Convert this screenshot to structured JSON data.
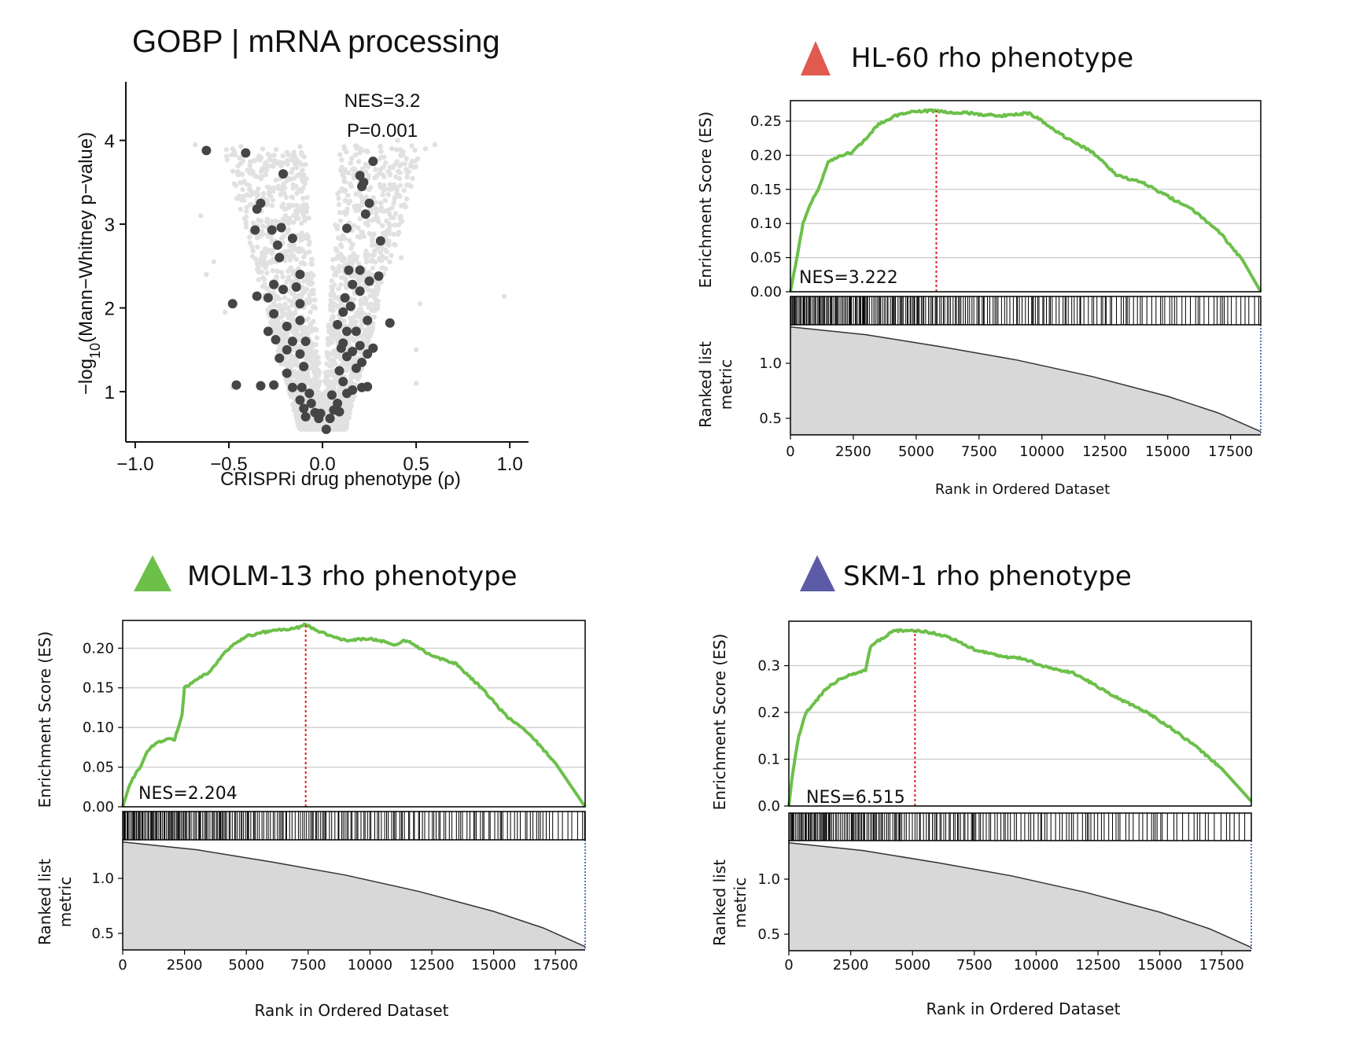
{
  "colors": {
    "es_line": "#6cc04a",
    "peak_line": "#e0201b",
    "ranked_fill": "#d8d8d8",
    "grid": "#c8c8c8",
    "volcano_bg": "#e1e1e1",
    "volcano_hit": "#454545",
    "marker_hl60": "#e05a4f",
    "marker_molm13": "#6cc04a",
    "marker_skm1": "#5b5ba8"
  },
  "volcano": {
    "title": "GOBP | mRNA processing",
    "nes_label": "NES=3.2",
    "p_label": "P=0.001"
  },
  "chart_data": [
    {
      "type": "scatter",
      "title": "GOBP | mRNA processing",
      "xlabel": "CRISPRi drug phenotype (ρ)",
      "ylabel": "−log10(Mann−Whitney p−value)",
      "xlim": [
        -1.05,
        1.1
      ],
      "ylim": [
        0.4,
        4.7
      ],
      "xticks": [
        "−1.0",
        "−0.5",
        "0.0",
        "0.5",
        "1.0"
      ],
      "xtick_values": [
        -1.0,
        -0.5,
        0.0,
        0.5,
        1.0
      ],
      "yticks": [
        "1",
        "2",
        "3",
        "4"
      ],
      "ytick_values": [
        1,
        2,
        3,
        4
      ],
      "annotations": [
        "NES=3.2",
        "P=0.001"
      ],
      "highlighted_points": [
        {
          "x": -0.62,
          "y": 3.88
        },
        {
          "x": -0.41,
          "y": 3.85
        },
        {
          "x": -0.21,
          "y": 3.6
        },
        {
          "x": -0.33,
          "y": 3.25
        },
        {
          "x": -0.35,
          "y": 3.18
        },
        {
          "x": -0.36,
          "y": 2.93
        },
        {
          "x": -0.27,
          "y": 2.93
        },
        {
          "x": -0.22,
          "y": 2.96
        },
        {
          "x": -0.24,
          "y": 2.75
        },
        {
          "x": -0.16,
          "y": 2.83
        },
        {
          "x": -0.23,
          "y": 2.6
        },
        {
          "x": -0.12,
          "y": 2.4
        },
        {
          "x": -0.26,
          "y": 2.28
        },
        {
          "x": -0.14,
          "y": 2.25
        },
        {
          "x": -0.21,
          "y": 2.22
        },
        {
          "x": -0.35,
          "y": 2.14
        },
        {
          "x": -0.29,
          "y": 2.12
        },
        {
          "x": -0.48,
          "y": 2.05
        },
        {
          "x": -0.12,
          "y": 2.05
        },
        {
          "x": -0.26,
          "y": 1.93
        },
        {
          "x": -0.12,
          "y": 1.85
        },
        {
          "x": -0.19,
          "y": 1.78
        },
        {
          "x": -0.29,
          "y": 1.72
        },
        {
          "x": -0.25,
          "y": 1.62
        },
        {
          "x": -0.16,
          "y": 1.6
        },
        {
          "x": -0.09,
          "y": 1.6
        },
        {
          "x": -0.19,
          "y": 1.5
        },
        {
          "x": -0.12,
          "y": 1.45
        },
        {
          "x": -0.23,
          "y": 1.4
        },
        {
          "x": -0.1,
          "y": 1.3
        },
        {
          "x": -0.19,
          "y": 1.22
        },
        {
          "x": -0.26,
          "y": 1.08
        },
        {
          "x": -0.46,
          "y": 1.08
        },
        {
          "x": -0.33,
          "y": 1.07
        },
        {
          "x": -0.16,
          "y": 1.05
        },
        {
          "x": -0.11,
          "y": 1.05
        },
        {
          "x": -0.07,
          "y": 0.98
        },
        {
          "x": -0.12,
          "y": 0.9
        },
        {
          "x": -0.06,
          "y": 0.86
        },
        {
          "x": -0.1,
          "y": 0.8
        },
        {
          "x": -0.04,
          "y": 0.75
        },
        {
          "x": -0.09,
          "y": 0.7
        },
        {
          "x": -0.02,
          "y": 0.68
        },
        {
          "x": 0.02,
          "y": 0.55
        },
        {
          "x": -0.01,
          "y": 0.74
        },
        {
          "x": 0.04,
          "y": 0.68
        },
        {
          "x": 0.06,
          "y": 0.78
        },
        {
          "x": 0.09,
          "y": 0.76
        },
        {
          "x": 0.08,
          "y": 0.86
        },
        {
          "x": 0.05,
          "y": 0.96
        },
        {
          "x": 0.13,
          "y": 0.98
        },
        {
          "x": 0.16,
          "y": 1.02
        },
        {
          "x": 0.21,
          "y": 1.05
        },
        {
          "x": 0.24,
          "y": 1.06
        },
        {
          "x": 0.11,
          "y": 1.12
        },
        {
          "x": 0.09,
          "y": 1.25
        },
        {
          "x": 0.18,
          "y": 1.28
        },
        {
          "x": 0.21,
          "y": 1.35
        },
        {
          "x": 0.13,
          "y": 1.42
        },
        {
          "x": 0.16,
          "y": 1.48
        },
        {
          "x": 0.1,
          "y": 1.52
        },
        {
          "x": 0.24,
          "y": 1.45
        },
        {
          "x": 0.11,
          "y": 1.58
        },
        {
          "x": 0.2,
          "y": 1.55
        },
        {
          "x": 0.27,
          "y": 1.52
        },
        {
          "x": 0.13,
          "y": 1.72
        },
        {
          "x": 0.18,
          "y": 1.72
        },
        {
          "x": 0.08,
          "y": 1.8
        },
        {
          "x": 0.24,
          "y": 1.85
        },
        {
          "x": 0.36,
          "y": 1.82
        },
        {
          "x": 0.11,
          "y": 1.95
        },
        {
          "x": 0.15,
          "y": 2.02
        },
        {
          "x": 0.12,
          "y": 2.12
        },
        {
          "x": 0.2,
          "y": 2.2
        },
        {
          "x": 0.16,
          "y": 2.28
        },
        {
          "x": 0.25,
          "y": 2.32
        },
        {
          "x": 0.3,
          "y": 2.38
        },
        {
          "x": 0.14,
          "y": 2.45
        },
        {
          "x": 0.2,
          "y": 2.45
        },
        {
          "x": 0.31,
          "y": 2.8
        },
        {
          "x": 0.13,
          "y": 2.95
        },
        {
          "x": 0.23,
          "y": 3.12
        },
        {
          "x": 0.25,
          "y": 3.25
        },
        {
          "x": 0.21,
          "y": 3.45
        },
        {
          "x": 0.22,
          "y": 3.5
        },
        {
          "x": 0.2,
          "y": 3.58
        },
        {
          "x": 0.27,
          "y": 3.75
        }
      ]
    },
    {
      "type": "line",
      "title": "HL-60  rho phenotype",
      "nes_label": "NES=3.222",
      "ylabel": "Enrichment Score (ES)",
      "ylabel2": "Ranked list metric",
      "xlabel": "Rank in Ordered Dataset",
      "xlim": [
        0,
        18700
      ],
      "ylim": [
        0,
        0.28
      ],
      "xticks": [
        0,
        2500,
        5000,
        7500,
        10000,
        12500,
        15000,
        17500
      ],
      "yticks": [
        "0.00",
        "0.05",
        "0.10",
        "0.15",
        "0.20",
        "0.25"
      ],
      "ytick_values": [
        0,
        0.05,
        0.1,
        0.15,
        0.2,
        0.25
      ],
      "ranked_ylim": [
        0.35,
        1.35
      ],
      "ranked_yticks": [
        "0.5",
        "1.0"
      ],
      "ranked_ytick_values": [
        0.5,
        1.0
      ],
      "peak_rank": 5800,
      "es_curve": [
        [
          0,
          0
        ],
        [
          200,
          0.04
        ],
        [
          500,
          0.1
        ],
        [
          800,
          0.13
        ],
        [
          1100,
          0.15
        ],
        [
          1500,
          0.19
        ],
        [
          2000,
          0.2
        ],
        [
          2500,
          0.205
        ],
        [
          3000,
          0.225
        ],
        [
          3500,
          0.245
        ],
        [
          4000,
          0.255
        ],
        [
          4500,
          0.262
        ],
        [
          5000,
          0.265
        ],
        [
          5800,
          0.265
        ],
        [
          6500,
          0.262
        ],
        [
          7000,
          0.262
        ],
        [
          7500,
          0.26
        ],
        [
          8500,
          0.258
        ],
        [
          9500,
          0.262
        ],
        [
          10000,
          0.25
        ],
        [
          11000,
          0.225
        ],
        [
          12000,
          0.205
        ],
        [
          13000,
          0.17
        ],
        [
          14000,
          0.16
        ],
        [
          15000,
          0.14
        ],
        [
          16000,
          0.12
        ],
        [
          17000,
          0.09
        ],
        [
          18000,
          0.045
        ],
        [
          18700,
          0
        ]
      ],
      "ranked_curve": [
        [
          0,
          1.33
        ],
        [
          3000,
          1.26
        ],
        [
          6000,
          1.15
        ],
        [
          9000,
          1.03
        ],
        [
          12000,
          0.88
        ],
        [
          15000,
          0.7
        ],
        [
          17000,
          0.55
        ],
        [
          18700,
          0.38
        ]
      ]
    },
    {
      "type": "line",
      "title": "MOLM-13  rho phenotype",
      "nes_label": "NES=2.204",
      "ylabel": "Enrichment Score (ES)",
      "ylabel2": "Ranked list metric",
      "xlabel": "Rank in Ordered Dataset",
      "xlim": [
        0,
        18700
      ],
      "ylim": [
        0,
        0.235
      ],
      "xticks": [
        0,
        2500,
        5000,
        7500,
        10000,
        12500,
        15000,
        17500
      ],
      "yticks": [
        "0.00",
        "0.05",
        "0.10",
        "0.15",
        "0.20"
      ],
      "ytick_values": [
        0,
        0.05,
        0.1,
        0.15,
        0.2
      ],
      "ranked_ylim": [
        0.35,
        1.35
      ],
      "ranked_yticks": [
        "0.5",
        "1.0"
      ],
      "ranked_ytick_values": [
        0.5,
        1.0
      ],
      "peak_rank": 7400,
      "es_curve": [
        [
          0,
          0
        ],
        [
          300,
          0.03
        ],
        [
          700,
          0.05
        ],
        [
          1000,
          0.07
        ],
        [
          1300,
          0.08
        ],
        [
          1800,
          0.085
        ],
        [
          2100,
          0.085
        ],
        [
          2400,
          0.115
        ],
        [
          2500,
          0.15
        ],
        [
          3000,
          0.16
        ],
        [
          3500,
          0.17
        ],
        [
          4000,
          0.19
        ],
        [
          4500,
          0.205
        ],
        [
          5000,
          0.215
        ],
        [
          6000,
          0.222
        ],
        [
          7000,
          0.225
        ],
        [
          7400,
          0.23
        ],
        [
          8000,
          0.22
        ],
        [
          9000,
          0.21
        ],
        [
          10000,
          0.212
        ],
        [
          11000,
          0.205
        ],
        [
          11500,
          0.21
        ],
        [
          12500,
          0.19
        ],
        [
          13500,
          0.18
        ],
        [
          14500,
          0.15
        ],
        [
          15500,
          0.115
        ],
        [
          16500,
          0.09
        ],
        [
          17500,
          0.055
        ],
        [
          18700,
          0
        ]
      ],
      "ranked_curve": [
        [
          0,
          1.33
        ],
        [
          3000,
          1.26
        ],
        [
          6000,
          1.15
        ],
        [
          9000,
          1.03
        ],
        [
          12000,
          0.88
        ],
        [
          15000,
          0.7
        ],
        [
          17000,
          0.55
        ],
        [
          18700,
          0.38
        ]
      ]
    },
    {
      "type": "line",
      "title": "SKM-1 rho phenotype",
      "nes_label": "NES=6.515",
      "ylabel": "Enrichment Score (ES)",
      "ylabel2": "Ranked list metric",
      "xlabel": "Rank in Ordered Dataset",
      "xlim": [
        0,
        18700
      ],
      "ylim": [
        0,
        0.395
      ],
      "xticks": [
        0,
        2500,
        5000,
        7500,
        10000,
        12500,
        15000,
        17500
      ],
      "yticks": [
        "0.0",
        "0.1",
        "0.2",
        "0.3"
      ],
      "ytick_values": [
        0,
        0.1,
        0.2,
        0.3
      ],
      "ranked_ylim": [
        0.35,
        1.35
      ],
      "ranked_yticks": [
        "0.5",
        "1.0"
      ],
      "ranked_ytick_values": [
        0.5,
        1.0
      ],
      "peak_rank": 5100,
      "es_curve": [
        [
          0,
          0
        ],
        [
          150,
          0.07
        ],
        [
          400,
          0.15
        ],
        [
          700,
          0.2
        ],
        [
          1100,
          0.225
        ],
        [
          1500,
          0.25
        ],
        [
          2000,
          0.27
        ],
        [
          2500,
          0.28
        ],
        [
          3100,
          0.29
        ],
        [
          3300,
          0.34
        ],
        [
          3800,
          0.36
        ],
        [
          4300,
          0.375
        ],
        [
          5100,
          0.375
        ],
        [
          5800,
          0.37
        ],
        [
          6500,
          0.36
        ],
        [
          7500,
          0.335
        ],
        [
          8500,
          0.32
        ],
        [
          9500,
          0.315
        ],
        [
          10500,
          0.295
        ],
        [
          11500,
          0.285
        ],
        [
          12500,
          0.255
        ],
        [
          13500,
          0.225
        ],
        [
          14500,
          0.2
        ],
        [
          15500,
          0.165
        ],
        [
          16500,
          0.125
        ],
        [
          17500,
          0.08
        ],
        [
          18700,
          0.01
        ]
      ],
      "ranked_curve": [
        [
          0,
          1.33
        ],
        [
          3000,
          1.26
        ],
        [
          6000,
          1.15
        ],
        [
          9000,
          1.03
        ],
        [
          12000,
          0.88
        ],
        [
          15000,
          0.7
        ],
        [
          17000,
          0.55
        ],
        [
          18700,
          0.38
        ]
      ]
    }
  ]
}
